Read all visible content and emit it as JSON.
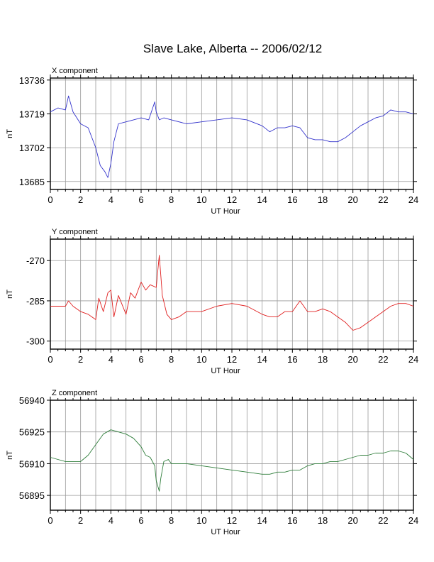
{
  "title": "Slave Lake, Alberta -- 2006/02/12",
  "chart_data": [
    {
      "type": "line",
      "label": "X component",
      "xlabel": "UT Hour",
      "ylabel": "nT",
      "xlim": [
        0,
        24
      ],
      "ylim": [
        13681,
        13737
      ],
      "xticks": [
        "0",
        "2",
        "4",
        "6",
        "8",
        "10",
        "12",
        "14",
        "16",
        "18",
        "20",
        "22",
        "24"
      ],
      "yticks": [
        13685,
        13702,
        13719,
        13736
      ],
      "grid": true,
      "series": [
        {
          "color": "#3333cc",
          "x": [
            0,
            0.5,
            1,
            1.2,
            1.5,
            2,
            2.5,
            3,
            3.3,
            3.6,
            3.8,
            4,
            4.2,
            4.5,
            5,
            5.5,
            6,
            6.5,
            6.9,
            7,
            7.2,
            7.5,
            8,
            9,
            10,
            11,
            12,
            13,
            14,
            14.5,
            15,
            15.5,
            16,
            16.5,
            17,
            17.5,
            18,
            18.5,
            19,
            19.5,
            20,
            20.5,
            21,
            21.5,
            22,
            22.5,
            23,
            23.5,
            24
          ],
          "y": [
            13720,
            13722,
            13721,
            13728,
            13720,
            13714,
            13712,
            13702,
            13693,
            13690,
            13687,
            13694,
            13705,
            13714,
            13715,
            13716,
            13717,
            13716,
            13725,
            13720,
            13716,
            13717,
            13716,
            13714,
            13715,
            13716,
            13717,
            13716,
            13713,
            13710,
            13712,
            13712,
            13713,
            13712,
            13707,
            13706,
            13706,
            13705,
            13705,
            13707,
            13710,
            13713,
            13715,
            13717,
            13718,
            13721,
            13720,
            13720,
            13719
          ]
        }
      ]
    },
    {
      "type": "line",
      "label": "Y component",
      "xlabel": "UT Hour",
      "ylabel": "nT",
      "xlim": [
        0,
        24
      ],
      "ylim": [
        -303,
        -262
      ],
      "xticks": [
        "0",
        "2",
        "4",
        "6",
        "8",
        "10",
        "12",
        "14",
        "16",
        "18",
        "20",
        "22",
        "24"
      ],
      "yticks": [
        -300,
        -285,
        -270
      ],
      "grid": true,
      "series": [
        {
          "color": "#e02020",
          "x": [
            0,
            0.5,
            1,
            1.2,
            1.5,
            2,
            2.5,
            3,
            3.2,
            3.5,
            3.8,
            4,
            4.2,
            4.5,
            5,
            5.3,
            5.6,
            6,
            6.3,
            6.6,
            7,
            7.2,
            7.4,
            7.7,
            8,
            8.5,
            9,
            10,
            11,
            12,
            13,
            14,
            14.5,
            15,
            15.5,
            16,
            16.5,
            17,
            17.5,
            18,
            18.5,
            19,
            19.5,
            20,
            20.5,
            21,
            21.5,
            22,
            22.5,
            23,
            23.5,
            24
          ],
          "y": [
            -287,
            -287,
            -287,
            -285,
            -287,
            -289,
            -290,
            -292,
            -284,
            -289,
            -282,
            -281,
            -291,
            -283,
            -290,
            -282,
            -284,
            -278,
            -281,
            -279,
            -280,
            -268,
            -283,
            -290,
            -292,
            -291,
            -289,
            -289,
            -287,
            -286,
            -287,
            -290,
            -291,
            -291,
            -289,
            -289,
            -285,
            -289,
            -289,
            -288,
            -289,
            -291,
            -293,
            -296,
            -295,
            -293,
            -291,
            -289,
            -287,
            -286,
            -286,
            -287
          ]
        }
      ]
    },
    {
      "type": "line",
      "label": "Z component",
      "xlabel": "UT Hour",
      "ylabel": "nT",
      "xlim": [
        0,
        24
      ],
      "ylim": [
        56888,
        56940
      ],
      "xticks": [
        "0",
        "2",
        "4",
        "6",
        "8",
        "10",
        "12",
        "14",
        "16",
        "18",
        "20",
        "22",
        "24"
      ],
      "yticks": [
        56895,
        56910,
        56925,
        56940
      ],
      "grid": true,
      "series": [
        {
          "color": "#2e7d3a",
          "x": [
            0,
            0.5,
            1,
            1.5,
            2,
            2.5,
            3,
            3.5,
            4,
            4.5,
            5,
            5.5,
            6,
            6.3,
            6.6,
            6.9,
            7,
            7.2,
            7.3,
            7.5,
            7.8,
            8,
            9,
            10,
            11,
            12,
            13,
            14,
            14.5,
            15,
            15.5,
            16,
            16.5,
            17,
            17.5,
            18,
            18.5,
            19,
            19.5,
            20,
            20.5,
            21,
            21.5,
            22,
            22.5,
            23,
            23.5,
            24
          ],
          "y": [
            56913,
            56912,
            56911,
            56911,
            56911,
            56914,
            56919,
            56924,
            56926,
            56925,
            56924,
            56922,
            56918,
            56914,
            56913,
            56909,
            56902,
            56897,
            56903,
            56911,
            56912,
            56910,
            56910,
            56909,
            56908,
            56907,
            56906,
            56905,
            56905,
            56906,
            56906,
            56907,
            56907,
            56909,
            56910,
            56910,
            56911,
            56911,
            56912,
            56913,
            56914,
            56914,
            56915,
            56915,
            56916,
            56916,
            56915,
            56912
          ]
        }
      ]
    }
  ]
}
